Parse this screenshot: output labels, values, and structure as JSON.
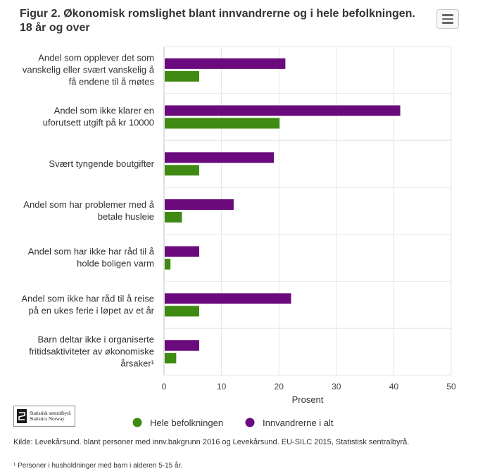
{
  "title": "Figur 2. Økonomisk romslighet blant innvandrerne og i hele befolkningen. 18 år og over",
  "source": "Kilde: Levekårsund. blant personer med innv.bakgrunn 2016 og Levekårsund. EU-SILC 2015, Statistisk sentralbyrå.",
  "footnote": "¹ Personer i husholdninger med barn i alderen 5-15 år.",
  "logo": {
    "line1": "Statistisk sentralbyrå",
    "line2": "Statistics Norway"
  },
  "chart_data": {
    "type": "bar",
    "orientation": "horizontal",
    "categories": [
      [
        "Andel som opplever det som",
        "vanskelig eller svært vanskelig å",
        "få endene til å møtes"
      ],
      [
        "Andel som ikke klarer en",
        "uforutsett utgift på kr 10000"
      ],
      [
        "Svært tyngende boutgifter"
      ],
      [
        "Andel som har problemer med å",
        "betale husleie"
      ],
      [
        "Andel som har ikke har råd til å",
        "holde boligen varm"
      ],
      [
        "Andel som ikke har råd til å reise",
        "på en ukes ferie i løpet av et år"
      ],
      [
        "Barn deltar ikke i organiserte",
        "fritidsaktiviteter av økonomiske",
        "årsaker¹"
      ]
    ],
    "series": [
      {
        "name": "Innvandrerne i alt",
        "color": "#6a0a7c",
        "values": [
          21,
          41,
          19,
          12,
          6,
          22,
          6
        ]
      },
      {
        "name": "Hele befolkningen",
        "color": "#3f8a12",
        "values": [
          6,
          20,
          6,
          3,
          1,
          6,
          2
        ]
      }
    ],
    "legend_order": [
      "Hele befolkningen",
      "Innvandrerne i alt"
    ],
    "xlabel": "Prosent",
    "xlim": [
      0,
      50
    ],
    "xticks": [
      0,
      10,
      20,
      30,
      40,
      50
    ],
    "grid": true,
    "legend": "bottom"
  }
}
